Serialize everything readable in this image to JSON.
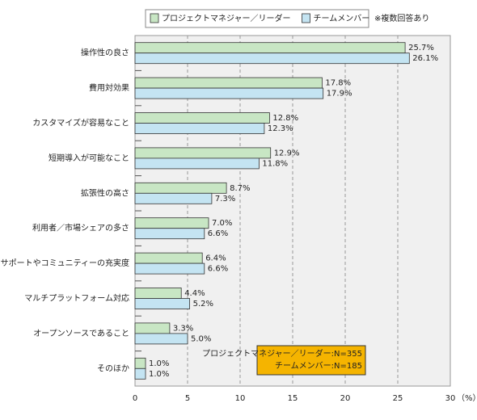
{
  "chart_data": {
    "type": "hbar",
    "categories": [
      "操作性の良さ",
      "費用対効果",
      "カスタマイズが容易なこと",
      "短期導入が可能なこと",
      "拡張性の高さ",
      "利用者／市場シェアの多さ",
      "サポートやコミュニティーの充実度",
      "マルチプラットフォーム対応",
      "オープンソースであること",
      "そのほか"
    ],
    "series": [
      {
        "name": "プロジェクトマネジャー／リーダー",
        "color": "#c8e6c4",
        "values": [
          25.7,
          17.8,
          12.8,
          12.9,
          8.7,
          7.0,
          6.4,
          4.4,
          3.3,
          1.0
        ],
        "value_labels": [
          "25.7%",
          "17.8%",
          "12.8%",
          "12.9%",
          "8.7%",
          "7.0%",
          "6.4%",
          "4.4%",
          "3.3%",
          "1.0%"
        ]
      },
      {
        "name": "チームメンバー",
        "color": "#c4e4f2",
        "values": [
          26.1,
          17.9,
          12.3,
          11.8,
          7.3,
          6.6,
          6.6,
          5.2,
          5.0,
          1.0
        ],
        "value_labels": [
          "26.1%",
          "17.9%",
          "12.3%",
          "11.8%",
          "7.3%",
          "6.6%",
          "6.6%",
          "5.2%",
          "5.0%",
          "1.0%"
        ]
      }
    ],
    "xlim": [
      0,
      30
    ],
    "xticks": [
      0,
      5,
      10,
      15,
      20,
      25,
      30
    ],
    "xlabel": "（%）",
    "grid": true,
    "note": "※複数回答あり",
    "annotation": [
      "プロジェクトマネジャー／リーダー:N=355",
      "チームメンバー:N=185"
    ],
    "annotation_color": "#f5b400"
  }
}
